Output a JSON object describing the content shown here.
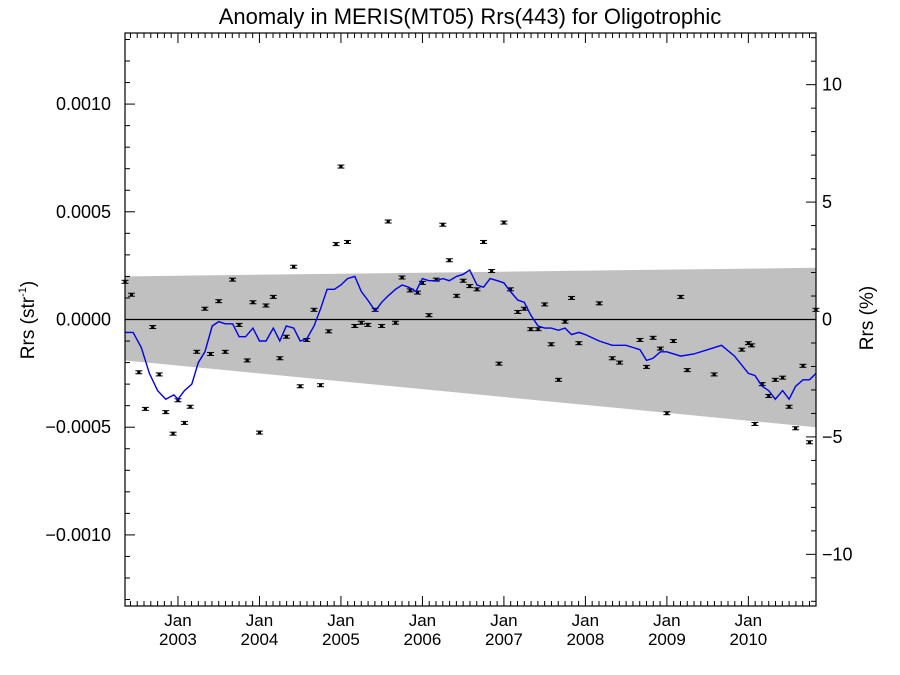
{
  "chart_data": {
    "type": "scatter",
    "title": "Anomaly in MERIS(MT05) Rrs(443) for Oligotrophic",
    "ylabel_main": "Rrs (str",
    "ylabel_sup": "-1",
    "ylabel_close": ")",
    "y2label": "Rrs (%)",
    "xlim": [
      2002.35,
      2010.83
    ],
    "ylim": [
      -0.00133,
      0.00133
    ],
    "y2lim": [
      -12.2,
      12.2
    ],
    "y_ticks": [
      {
        "value": 0.001,
        "label": "0.0010"
      },
      {
        "value": 0.0005,
        "label": "0.0005"
      },
      {
        "value": 0.0,
        "label": "0.0000"
      },
      {
        "value": -0.0005,
        "label": "−0.0005"
      },
      {
        "value": -0.001,
        "label": "−0.0010"
      }
    ],
    "y2_ticks": [
      {
        "value": 10,
        "label": "10"
      },
      {
        "value": 5,
        "label": "5"
      },
      {
        "value": 0,
        "label": "0"
      },
      {
        "value": -5,
        "label": "−5"
      },
      {
        "value": -10,
        "label": "−10"
      }
    ],
    "x_ticks": [
      {
        "value": 2003.0,
        "month": "Jan",
        "year": "2003"
      },
      {
        "value": 2004.0,
        "month": "Jan",
        "year": "2004"
      },
      {
        "value": 2005.0,
        "month": "Jan",
        "year": "2005"
      },
      {
        "value": 2006.0,
        "month": "Jan",
        "year": "2006"
      },
      {
        "value": 2007.0,
        "month": "Jan",
        "year": "2007"
      },
      {
        "value": 2008.0,
        "month": "Jan",
        "year": "2008"
      },
      {
        "value": 2009.0,
        "month": "Jan",
        "year": "2009"
      },
      {
        "value": 2010.0,
        "month": "Jan",
        "year": "2010"
      }
    ],
    "uncertainty_band": {
      "x": [
        2002.35,
        2010.83
      ],
      "upper": [
        0.0002,
        0.00024
      ],
      "lower": [
        -0.00019,
        -0.0005
      ],
      "color": "#c0c0c0"
    },
    "zero_line": true,
    "colors": {
      "points": "#000000",
      "running_mean": "#0000ee",
      "band": "#c0c0c0"
    },
    "points": [
      {
        "x": 2002.35,
        "y": 0.000175
      },
      {
        "x": 2002.43,
        "y": 0.000115
      },
      {
        "x": 2002.52,
        "y": -0.000245
      },
      {
        "x": 2002.6,
        "y": -0.000415
      },
      {
        "x": 2002.69,
        "y": -3.5e-05
      },
      {
        "x": 2002.77,
        "y": -0.000255
      },
      {
        "x": 2002.85,
        "y": -0.00043
      },
      {
        "x": 2002.94,
        "y": -0.00053
      },
      {
        "x": 2003.0,
        "y": -0.000375
      },
      {
        "x": 2003.08,
        "y": -0.00048
      },
      {
        "x": 2003.15,
        "y": -0.000405
      },
      {
        "x": 2003.23,
        "y": -0.00015
      },
      {
        "x": 2003.33,
        "y": 5e-05
      },
      {
        "x": 2003.4,
        "y": -0.00016
      },
      {
        "x": 2003.5,
        "y": 8.5e-05
      },
      {
        "x": 2003.58,
        "y": -0.00015
      },
      {
        "x": 2003.67,
        "y": 0.000185
      },
      {
        "x": 2003.75,
        "y": -2.5e-05
      },
      {
        "x": 2003.85,
        "y": -0.00019
      },
      {
        "x": 2003.92,
        "y": 8e-05
      },
      {
        "x": 2004.0,
        "y": -0.000525
      },
      {
        "x": 2004.08,
        "y": 6.5e-05
      },
      {
        "x": 2004.17,
        "y": 0.000105
      },
      {
        "x": 2004.25,
        "y": -0.00018
      },
      {
        "x": 2004.33,
        "y": -8e-05
      },
      {
        "x": 2004.42,
        "y": 0.000245
      },
      {
        "x": 2004.5,
        "y": -0.00031
      },
      {
        "x": 2004.58,
        "y": -9.5e-05
      },
      {
        "x": 2004.67,
        "y": 4.5e-05
      },
      {
        "x": 2004.75,
        "y": -0.000305
      },
      {
        "x": 2004.85,
        "y": -5.5e-05
      },
      {
        "x": 2004.94,
        "y": 0.00035
      },
      {
        "x": 2005.0,
        "y": 0.00071
      },
      {
        "x": 2005.08,
        "y": 0.00036
      },
      {
        "x": 2005.17,
        "y": -3e-05
      },
      {
        "x": 2005.25,
        "y": -1.5e-05
      },
      {
        "x": 2005.33,
        "y": -2.5e-05
      },
      {
        "x": 2005.42,
        "y": 4.5e-05
      },
      {
        "x": 2005.5,
        "y": -3e-05
      },
      {
        "x": 2005.58,
        "y": 0.000455
      },
      {
        "x": 2005.67,
        "y": -1.5e-05
      },
      {
        "x": 2005.75,
        "y": 0.000195
      },
      {
        "x": 2005.85,
        "y": 0.000135
      },
      {
        "x": 2005.94,
        "y": 0.000125
      },
      {
        "x": 2006.0,
        "y": 0.00017
      },
      {
        "x": 2006.08,
        "y": 2e-05
      },
      {
        "x": 2006.17,
        "y": 0.000185
      },
      {
        "x": 2006.25,
        "y": 0.00044
      },
      {
        "x": 2006.33,
        "y": 0.000275
      },
      {
        "x": 2006.42,
        "y": 0.00011
      },
      {
        "x": 2006.5,
        "y": 0.00018
      },
      {
        "x": 2006.58,
        "y": 0.000155
      },
      {
        "x": 2006.67,
        "y": 0.00014
      },
      {
        "x": 2006.75,
        "y": 0.00036
      },
      {
        "x": 2006.85,
        "y": 0.000225
      },
      {
        "x": 2006.94,
        "y": -0.000205
      },
      {
        "x": 2007.0,
        "y": 0.00045
      },
      {
        "x": 2007.08,
        "y": 0.00014
      },
      {
        "x": 2007.17,
        "y": 3.5e-05
      },
      {
        "x": 2007.25,
        "y": 5e-05
      },
      {
        "x": 2007.33,
        "y": -4.5e-05
      },
      {
        "x": 2007.42,
        "y": -4.5e-05
      },
      {
        "x": 2007.5,
        "y": 7e-05
      },
      {
        "x": 2007.58,
        "y": -0.000115
      },
      {
        "x": 2007.67,
        "y": -0.00028
      },
      {
        "x": 2007.75,
        "y": -1e-05
      },
      {
        "x": 2007.83,
        "y": 0.0001
      },
      {
        "x": 2007.92,
        "y": -0.00011
      },
      {
        "x": 2008.17,
        "y": 7.5e-05
      },
      {
        "x": 2008.33,
        "y": -0.00018
      },
      {
        "x": 2008.42,
        "y": -0.0002
      },
      {
        "x": 2008.67,
        "y": -9.5e-05
      },
      {
        "x": 2008.75,
        "y": -0.00022
      },
      {
        "x": 2008.83,
        "y": -8.5e-05
      },
      {
        "x": 2008.92,
        "y": -0.000135
      },
      {
        "x": 2009.0,
        "y": -0.000435
      },
      {
        "x": 2009.08,
        "y": -0.0001
      },
      {
        "x": 2009.17,
        "y": 0.000105
      },
      {
        "x": 2009.25,
        "y": -0.000235
      },
      {
        "x": 2009.58,
        "y": -0.000255
      },
      {
        "x": 2009.92,
        "y": -0.00014
      },
      {
        "x": 2010.0,
        "y": -0.00011
      },
      {
        "x": 2010.04,
        "y": -0.00012
      },
      {
        "x": 2010.08,
        "y": -0.000485
      },
      {
        "x": 2010.17,
        "y": -0.0003
      },
      {
        "x": 2010.25,
        "y": -0.000355
      },
      {
        "x": 2010.33,
        "y": -0.00028
      },
      {
        "x": 2010.42,
        "y": -0.00027
      },
      {
        "x": 2010.5,
        "y": -0.000405
      },
      {
        "x": 2010.58,
        "y": -0.000505
      },
      {
        "x": 2010.67,
        "y": -0.000215
      },
      {
        "x": 2010.75,
        "y": -0.00057
      },
      {
        "x": 2010.83,
        "y": 4.5e-05
      }
    ],
    "running_mean": {
      "x": [
        2002.35,
        2002.45,
        2002.55,
        2002.65,
        2002.75,
        2002.85,
        2002.95,
        2003.0,
        2003.08,
        2003.17,
        2003.25,
        2003.33,
        2003.42,
        2003.5,
        2003.58,
        2003.67,
        2003.75,
        2003.83,
        2003.92,
        2004.0,
        2004.08,
        2004.17,
        2004.25,
        2004.33,
        2004.42,
        2004.5,
        2004.58,
        2004.67,
        2004.75,
        2004.83,
        2004.92,
        2005.0,
        2005.08,
        2005.17,
        2005.25,
        2005.33,
        2005.42,
        2005.5,
        2005.58,
        2005.67,
        2005.75,
        2005.83,
        2005.92,
        2006.0,
        2006.08,
        2006.17,
        2006.25,
        2006.33,
        2006.42,
        2006.5,
        2006.58,
        2006.67,
        2006.75,
        2006.83,
        2006.92,
        2007.0,
        2007.08,
        2007.17,
        2007.25,
        2007.33,
        2007.42,
        2007.5,
        2007.58,
        2007.67,
        2007.75,
        2007.83,
        2007.92,
        2008.0,
        2008.17,
        2008.33,
        2008.5,
        2008.67,
        2008.75,
        2008.83,
        2008.92,
        2009.0,
        2009.17,
        2009.33,
        2009.5,
        2009.67,
        2009.83,
        2010.0,
        2010.08,
        2010.17,
        2010.25,
        2010.33,
        2010.42,
        2010.5,
        2010.58,
        2010.67,
        2010.75,
        2010.83
      ],
      "y": [
        -6e-05,
        -6e-05,
        -0.00013,
        -0.00025,
        -0.00033,
        -0.00037,
        -0.00035,
        -0.00037,
        -0.00033,
        -0.0003,
        -0.0002,
        -0.00015,
        -3e-05,
        -1e-05,
        -2e-05,
        -2e-05,
        -8e-05,
        -8e-05,
        -4e-05,
        -0.0001,
        -0.0001,
        -4e-05,
        -0.0001,
        -3e-05,
        -4e-05,
        -0.0001,
        -9e-05,
        -3e-05,
        5e-05,
        0.00014,
        0.00014,
        0.00016,
        0.00019,
        0.0002,
        0.00013,
        9e-05,
        4e-05,
        8e-05,
        0.00011,
        0.00014,
        0.00016,
        0.00015,
        0.00013,
        0.00019,
        0.00018,
        0.00018,
        0.00019,
        0.00018,
        0.0002,
        0.00021,
        0.00023,
        0.00016,
        0.00015,
        0.00019,
        0.00018,
        0.00017,
        0.00013,
        9e-05,
        8e-05,
        2e-05,
        -3e-05,
        -4e-05,
        -4e-05,
        -5e-05,
        -4e-05,
        -7e-05,
        -6e-05,
        -7e-05,
        -0.0001,
        -0.00012,
        -0.00012,
        -0.00014,
        -0.00019,
        -0.00018,
        -0.00015,
        -0.00015,
        -0.00017,
        -0.00016,
        -0.00014,
        -0.00012,
        -0.00017,
        -0.00025,
        -0.00026,
        -0.00031,
        -0.00033,
        -0.00037,
        -0.00033,
        -0.00037,
        -0.00031,
        -0.00028,
        -0.00028,
        -0.00025
      ]
    }
  }
}
